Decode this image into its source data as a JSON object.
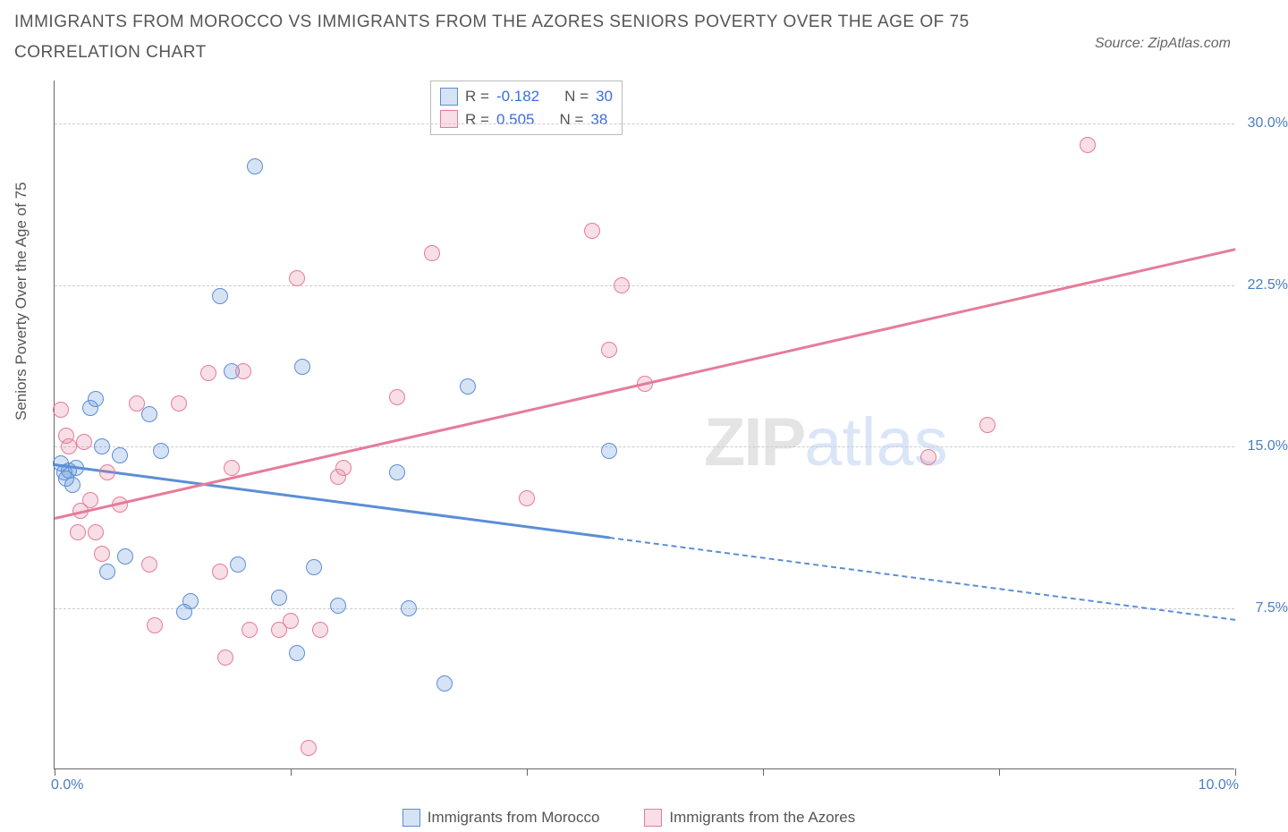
{
  "title": "IMMIGRANTS FROM MOROCCO VS IMMIGRANTS FROM THE AZORES SENIORS POVERTY OVER THE AGE OF 75 CORRELATION CHART",
  "source_label": "Source: ZipAtlas.com",
  "watermark": {
    "zip": "ZIP",
    "atlas": "atlas",
    "fontsize": 76,
    "color_zip": "rgba(120,120,120,0.20)",
    "color_atlas": "rgba(70,130,220,0.20)"
  },
  "chart": {
    "type": "scatter",
    "background_color": "#ffffff",
    "grid_color": "#cccccc",
    "axis_color": "#666666",
    "ylabel": "Seniors Poverty Over the Age of 75",
    "label_fontsize": 17,
    "tick_fontsize": 16,
    "tick_color": "#4a7ebb",
    "xlim": [
      0.0,
      10.0
    ],
    "ylim": [
      0.0,
      32.0
    ],
    "xticks": [
      0.0,
      2.0,
      4.0,
      6.0,
      8.0,
      10.0
    ],
    "xtick_labels": [
      "0.0%",
      "",
      "",
      "",
      "",
      "10.0%"
    ],
    "yticks": [
      7.5,
      15.0,
      22.5,
      30.0
    ],
    "ytick_labels": [
      "7.5%",
      "15.0%",
      "22.5%",
      "30.0%"
    ],
    "point_radius": 9,
    "point_border_width": 1.5,
    "point_fill_opacity": 0.25,
    "series": [
      {
        "name": "Immigrants from Morocco",
        "color": "#5b8ed6",
        "fill": "rgba(91,142,214,0.25)",
        "R": "-0.182",
        "N": "30",
        "trend": {
          "x1": 0.0,
          "y1": 14.2,
          "x2": 10.0,
          "y2": 7.0,
          "solid_until_x": 4.7,
          "width": 2.5
        },
        "points": [
          [
            0.05,
            14.2
          ],
          [
            0.08,
            13.8
          ],
          [
            0.1,
            13.5
          ],
          [
            0.12,
            13.9
          ],
          [
            0.15,
            13.2
          ],
          [
            0.18,
            14.0
          ],
          [
            0.3,
            16.8
          ],
          [
            0.35,
            17.2
          ],
          [
            0.4,
            15.0
          ],
          [
            0.45,
            9.2
          ],
          [
            0.55,
            14.6
          ],
          [
            0.6,
            9.9
          ],
          [
            0.8,
            16.5
          ],
          [
            0.9,
            14.8
          ],
          [
            1.1,
            7.3
          ],
          [
            1.15,
            7.8
          ],
          [
            1.4,
            22.0
          ],
          [
            1.5,
            18.5
          ],
          [
            1.55,
            9.5
          ],
          [
            1.7,
            28.0
          ],
          [
            1.9,
            8.0
          ],
          [
            2.05,
            5.4
          ],
          [
            2.1,
            18.7
          ],
          [
            2.2,
            9.4
          ],
          [
            2.4,
            7.6
          ],
          [
            2.9,
            13.8
          ],
          [
            3.0,
            7.5
          ],
          [
            3.3,
            4.0
          ],
          [
            3.5,
            17.8
          ],
          [
            4.7,
            14.8
          ]
        ]
      },
      {
        "name": "Immigrants from the Azores",
        "color": "#e57c9a",
        "fill": "rgba(229,124,154,0.25)",
        "R": "0.505",
        "N": "38",
        "trend": {
          "x1": 0.0,
          "y1": 11.7,
          "x2": 10.0,
          "y2": 24.2,
          "solid_until_x": 10.0,
          "width": 2.5
        },
        "points": [
          [
            0.05,
            16.7
          ],
          [
            0.1,
            15.5
          ],
          [
            0.12,
            15.0
          ],
          [
            0.2,
            11.0
          ],
          [
            0.22,
            12.0
          ],
          [
            0.25,
            15.2
          ],
          [
            0.3,
            12.5
          ],
          [
            0.35,
            11.0
          ],
          [
            0.4,
            10.0
          ],
          [
            0.45,
            13.8
          ],
          [
            0.55,
            12.3
          ],
          [
            0.7,
            17.0
          ],
          [
            0.8,
            9.5
          ],
          [
            0.85,
            6.7
          ],
          [
            1.05,
            17.0
          ],
          [
            1.3,
            18.4
          ],
          [
            1.4,
            9.2
          ],
          [
            1.45,
            5.2
          ],
          [
            1.5,
            14.0
          ],
          [
            1.65,
            6.5
          ],
          [
            1.6,
            18.5
          ],
          [
            1.9,
            6.5
          ],
          [
            2.0,
            6.9
          ],
          [
            2.05,
            22.8
          ],
          [
            2.15,
            1.0
          ],
          [
            2.25,
            6.5
          ],
          [
            2.4,
            13.6
          ],
          [
            2.45,
            14.0
          ],
          [
            2.9,
            17.3
          ],
          [
            3.2,
            24.0
          ],
          [
            4.0,
            12.6
          ],
          [
            4.55,
            25.0
          ],
          [
            4.7,
            19.5
          ],
          [
            4.8,
            22.5
          ],
          [
            5.0,
            17.9
          ],
          [
            7.4,
            14.5
          ],
          [
            7.9,
            16.0
          ],
          [
            8.75,
            29.0
          ]
        ]
      }
    ],
    "stats_legend": {
      "R_label": "R = ",
      "N_label": "N = "
    },
    "bottom_legend_labels": [
      "Immigrants from Morocco",
      "Immigrants from the Azores"
    ]
  }
}
